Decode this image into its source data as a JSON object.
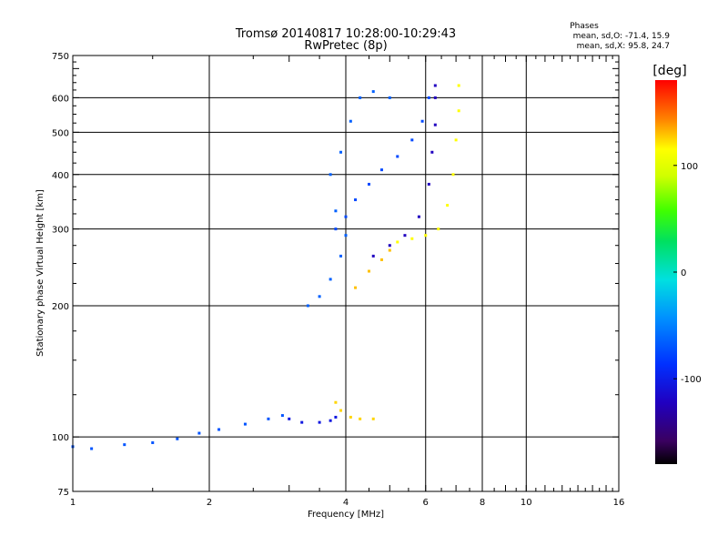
{
  "chart_data": {
    "type": "scatter",
    "title": "Tromsø 20140817 10:28:00-10:29:43",
    "subtitle": "RwPretec (8p)",
    "xlabel": "Frequency [MHz]",
    "ylabel": "Stationary phase Virtual Height [km]",
    "xscale": "log",
    "yscale": "log",
    "xlim": [
      1,
      16
    ],
    "ylim": [
      75,
      750
    ],
    "x_ticks": [
      1,
      2,
      4,
      6,
      8,
      10,
      16
    ],
    "x_tick_labels": [
      "1",
      "2",
      "4",
      "6",
      "8",
      "10",
      "16"
    ],
    "x_gridlines": [
      2,
      4,
      6,
      8,
      10
    ],
    "y_ticks": [
      75,
      100,
      200,
      300,
      400,
      500,
      600,
      750
    ],
    "y_tick_labels": [
      "75",
      "100",
      "200",
      "300",
      "400",
      "500",
      "600",
      "750"
    ],
    "y_gridlines": [
      100,
      200,
      300,
      400,
      500,
      600
    ],
    "grid": true,
    "stats": {
      "header": "Phases",
      "line_o": "mean, sd,O: -71.4, 15.9",
      "line_x": "mean, sd,X:  95.8, 24.7"
    },
    "colorbar": {
      "label": "[deg]",
      "range": [
        -180,
        180
      ],
      "ticks": [
        100,
        0,
        -100
      ],
      "tick_labels": [
        "100",
        "0",
        "-100"
      ]
    },
    "traces": [
      {
        "phase": -80,
        "points": [
          [
            1.0,
            95
          ],
          [
            1.1,
            94
          ],
          [
            1.3,
            96
          ],
          [
            1.5,
            97
          ],
          [
            1.7,
            99
          ],
          [
            1.9,
            102
          ],
          [
            2.1,
            104
          ],
          [
            2.4,
            107
          ],
          [
            2.7,
            110
          ],
          [
            2.9,
            112
          ]
        ]
      },
      {
        "phase": -110,
        "points": [
          [
            3.0,
            110
          ],
          [
            3.2,
            108
          ],
          [
            3.5,
            108
          ],
          [
            3.7,
            109
          ],
          [
            3.8,
            111
          ]
        ]
      },
      {
        "phase": 125,
        "points": [
          [
            3.8,
            120
          ],
          [
            3.9,
            115
          ],
          [
            4.1,
            111
          ],
          [
            4.3,
            110
          ],
          [
            4.6,
            110
          ]
        ]
      },
      {
        "phase": -75,
        "points": [
          [
            3.3,
            200
          ],
          [
            3.5,
            210
          ],
          [
            3.7,
            230
          ],
          [
            3.9,
            260
          ],
          [
            4.0,
            290
          ],
          [
            3.8,
            330
          ],
          [
            3.7,
            400
          ],
          [
            3.9,
            450
          ],
          [
            4.1,
            530
          ],
          [
            4.3,
            600
          ],
          [
            4.6,
            620
          ],
          [
            5.0,
            600
          ]
        ]
      },
      {
        "phase": -85,
        "points": [
          [
            3.8,
            300
          ],
          [
            4.0,
            320
          ],
          [
            4.2,
            350
          ],
          [
            4.5,
            380
          ],
          [
            4.8,
            410
          ],
          [
            5.2,
            440
          ],
          [
            5.6,
            480
          ],
          [
            5.9,
            530
          ],
          [
            6.1,
            600
          ]
        ]
      },
      {
        "phase": -125,
        "points": [
          [
            4.6,
            260
          ],
          [
            5.0,
            275
          ],
          [
            5.4,
            290
          ],
          [
            5.8,
            320
          ],
          [
            6.1,
            380
          ],
          [
            6.2,
            450
          ],
          [
            6.3,
            520
          ],
          [
            6.3,
            600
          ],
          [
            6.3,
            640
          ]
        ]
      },
      {
        "phase": 130,
        "points": [
          [
            4.2,
            220
          ],
          [
            4.5,
            240
          ],
          [
            4.8,
            255
          ],
          [
            5.0,
            268
          ]
        ]
      },
      {
        "phase": 115,
        "points": [
          [
            5.2,
            280
          ],
          [
            5.6,
            285
          ],
          [
            6.0,
            290
          ],
          [
            6.4,
            300
          ],
          [
            6.7,
            340
          ],
          [
            6.9,
            400
          ],
          [
            7.0,
            480
          ],
          [
            7.1,
            560
          ],
          [
            7.1,
            640
          ]
        ]
      }
    ]
  }
}
